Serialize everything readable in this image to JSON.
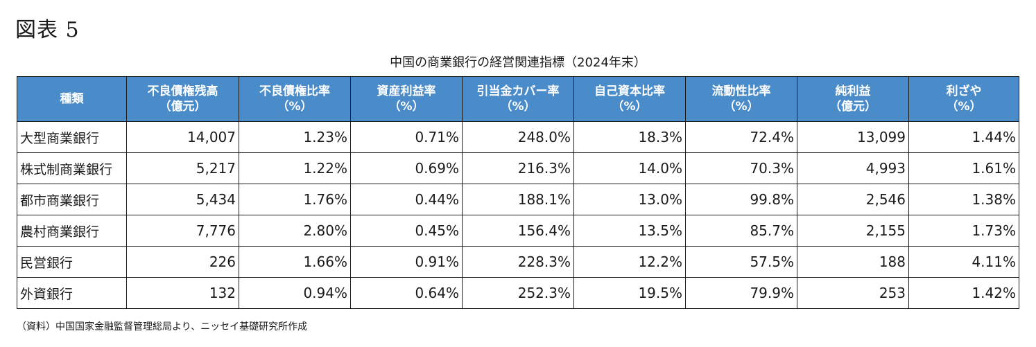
{
  "figure_label": "図表 5",
  "title": "中国の商業銀行の経営関連指標（2024年末）",
  "columns": [
    {
      "line1": "種類",
      "line2": ""
    },
    {
      "line1": "不良債権残高",
      "line2": "（億元）"
    },
    {
      "line1": "不良債権比率",
      "line2": "（%）"
    },
    {
      "line1": "資産利益率",
      "line2": "（%）"
    },
    {
      "line1": "引当金カバー率",
      "line2": "（%）"
    },
    {
      "line1": "自己資本比率",
      "line2": "（%）"
    },
    {
      "line1": "流動性比率",
      "line2": "（%）"
    },
    {
      "line1": "純利益",
      "line2": "（億元）"
    },
    {
      "line1": "利ざや",
      "line2": "（%）"
    }
  ],
  "rows": [
    [
      "大型商業銀行",
      "14,007",
      "1.23%",
      "0.71%",
      "248.0%",
      "18.3%",
      "72.4%",
      "13,099",
      "1.44%"
    ],
    [
      "株式制商業銀行",
      "5,217",
      "1.22%",
      "0.69%",
      "216.3%",
      "14.0%",
      "70.3%",
      "4,993",
      "1.61%"
    ],
    [
      "都市商業銀行",
      "5,434",
      "1.76%",
      "0.44%",
      "188.1%",
      "13.0%",
      "99.8%",
      "2,546",
      "1.38%"
    ],
    [
      "農村商業銀行",
      "7,776",
      "2.80%",
      "0.45%",
      "156.4%",
      "13.5%",
      "85.7%",
      "2,155",
      "1.73%"
    ],
    [
      "民営銀行",
      "226",
      "1.66%",
      "0.91%",
      "228.3%",
      "12.2%",
      "57.5%",
      "188",
      "4.11%"
    ],
    [
      "外資銀行",
      "132",
      "0.94%",
      "0.64%",
      "252.3%",
      "19.5%",
      "79.9%",
      "253",
      "1.42%"
    ]
  ],
  "source": "（資料）中国国家金融監督管理総局より、ニッセイ基礎研究所作成",
  "colors": {
    "header_bg": "#4a8bc9",
    "header_text": "#ffffff",
    "border": "#1a1a1a"
  }
}
